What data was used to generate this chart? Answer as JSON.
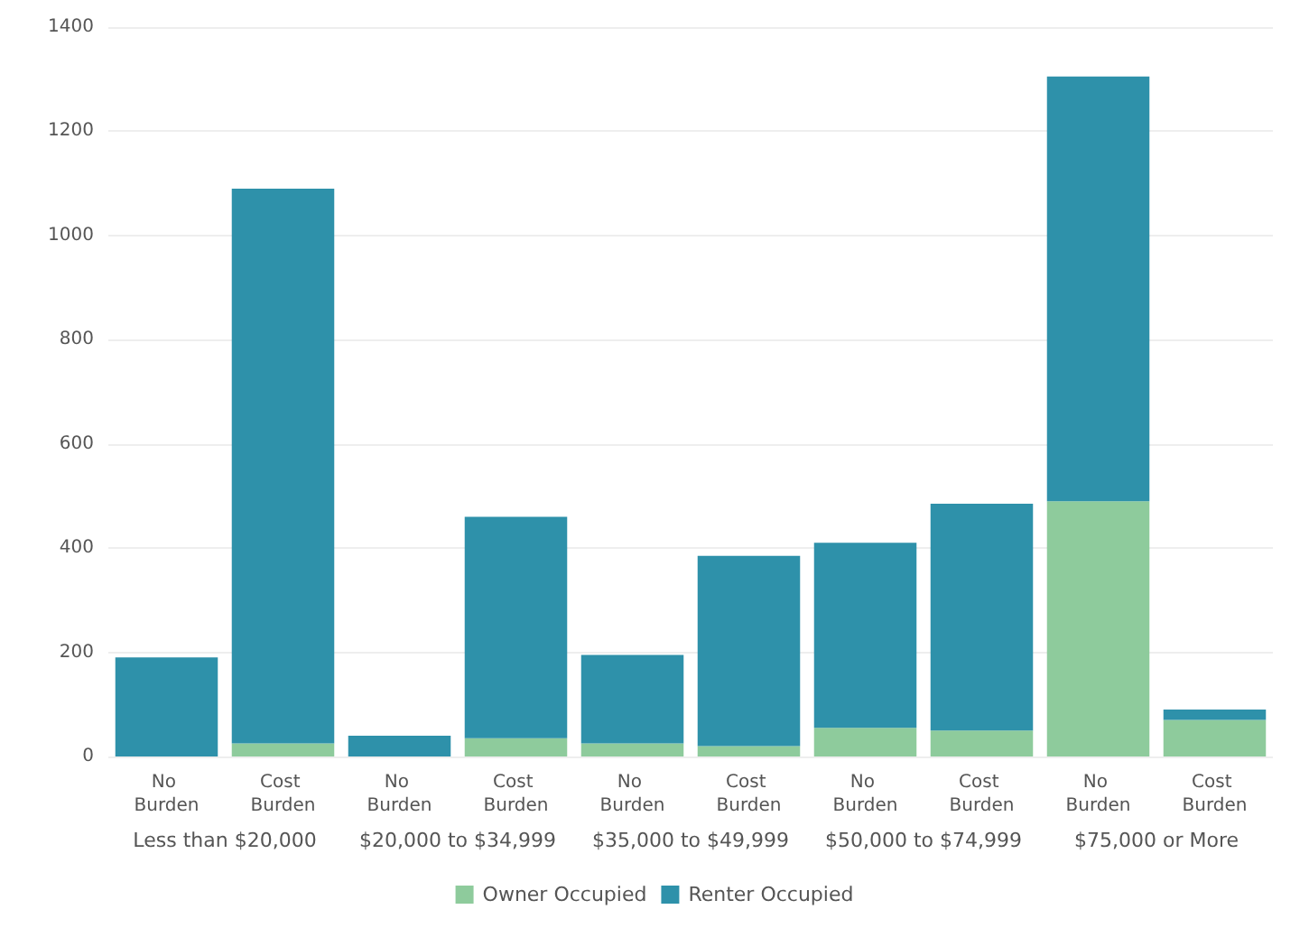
{
  "chart_data": {
    "type": "bar",
    "stacked": true,
    "categories": [
      "No Burden",
      "Cost Burden",
      "No Burden",
      "Cost Burden",
      "No Burden",
      "Cost Burden",
      "No Burden",
      "Cost Burden",
      "No Burden",
      "Cost Burden"
    ],
    "series": [
      {
        "name": "Owner Occupied",
        "color": "#8ecb9c",
        "values": [
          0,
          25,
          0,
          35,
          25,
          20,
          55,
          50,
          490,
          70
        ]
      },
      {
        "name": "Renter Occupied",
        "color": "#2e91aa",
        "values": [
          190,
          1065,
          40,
          425,
          170,
          365,
          355,
          435,
          815,
          20
        ]
      }
    ],
    "annotations": [
      "Less than $20,000",
      "$20,000 to $34,999",
      "$35,000 to $49,999",
      "$50,000 to $74,999",
      "$75,000 or More"
    ],
    "ylim": [
      0,
      1400
    ],
    "yticks": [
      0,
      200,
      400,
      600,
      800,
      1000,
      1200,
      1400
    ],
    "grid": "y",
    "legend": "bottom"
  }
}
